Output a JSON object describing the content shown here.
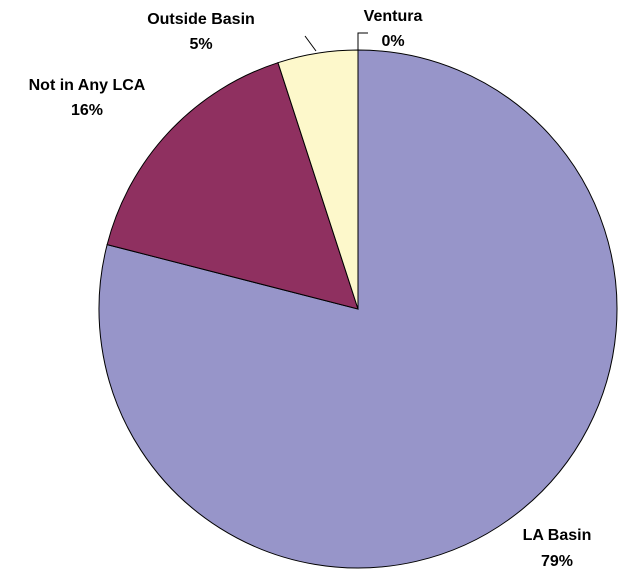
{
  "chart_data": {
    "type": "pie",
    "categories": [
      "LA Basin",
      "Not in Any LCA",
      "Outside Basin",
      "Ventura"
    ],
    "values": [
      79,
      16,
      5,
      0
    ],
    "value_labels": [
      "79%",
      "16%",
      "5%",
      "0%"
    ],
    "colors": [
      "#9795c9",
      "#8f3060",
      "#fdf8cb",
      "#ffffff"
    ]
  }
}
